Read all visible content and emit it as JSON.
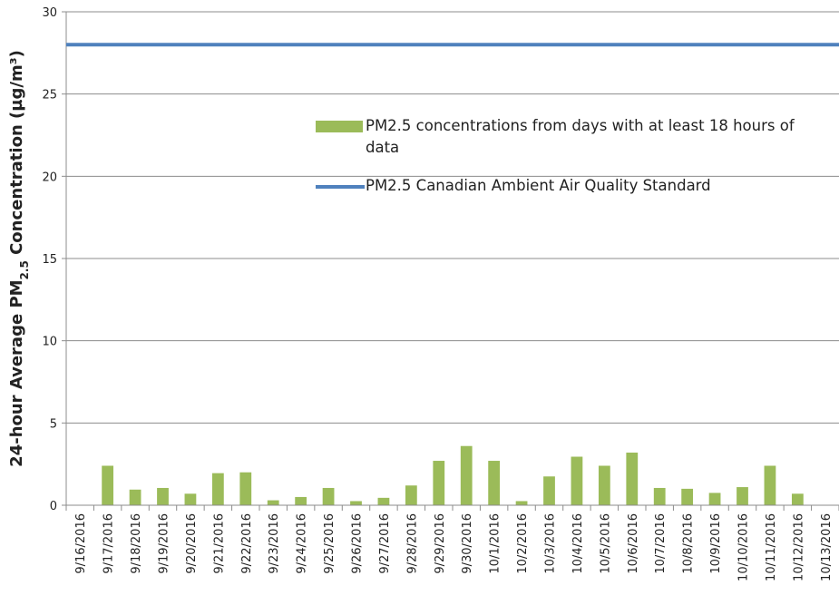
{
  "chart_data": {
    "type": "bar",
    "y_label": [
      "24-hour Average PM",
      "2.5",
      " Concentration (µg/m³)"
    ],
    "categories": [
      "9/16/2016",
      "9/17/2016",
      "9/18/2016",
      "9/19/2016",
      "9/20/2016",
      "9/21/2016",
      "9/22/2016",
      "9/23/2016",
      "9/24/2016",
      "9/25/2016",
      "9/26/2016",
      "9/27/2016",
      "9/28/2016",
      "9/29/2016",
      "9/30/2016",
      "10/1/2016",
      "10/2/2016",
      "10/3/2016",
      "10/4/2016",
      "10/5/2016",
      "10/6/2016",
      "10/7/2016",
      "10/8/2016",
      "10/9/2016",
      "10/10/2016",
      "10/11/2016",
      "10/12/2016",
      "10/13/2016"
    ],
    "series": [
      {
        "name": "PM2.5 concentrations from days with at least 18 hours of data",
        "type": "bar",
        "color": "#9bbb59",
        "values": [
          null,
          2.4,
          0.95,
          1.05,
          0.7,
          1.95,
          2.0,
          0.3,
          0.5,
          1.05,
          0.25,
          0.45,
          1.2,
          2.7,
          3.6,
          2.7,
          0.25,
          1.75,
          2.95,
          2.4,
          3.2,
          1.05,
          1.0,
          0.75,
          1.1,
          2.4,
          0.7,
          null
        ]
      },
      {
        "name": "PM2.5 Canadian Ambient Air Quality Standard",
        "type": "line",
        "color": "#4f81bd",
        "values": [
          28,
          28,
          28,
          28,
          28,
          28,
          28,
          28,
          28,
          28,
          28,
          28,
          28,
          28,
          28,
          28,
          28,
          28,
          28,
          28,
          28,
          28,
          28,
          28,
          28,
          28,
          28,
          28
        ]
      }
    ],
    "ylim": [
      0,
      30
    ],
    "yticks": [
      0,
      5,
      10,
      15,
      20,
      25,
      30
    ],
    "grid": true
  }
}
